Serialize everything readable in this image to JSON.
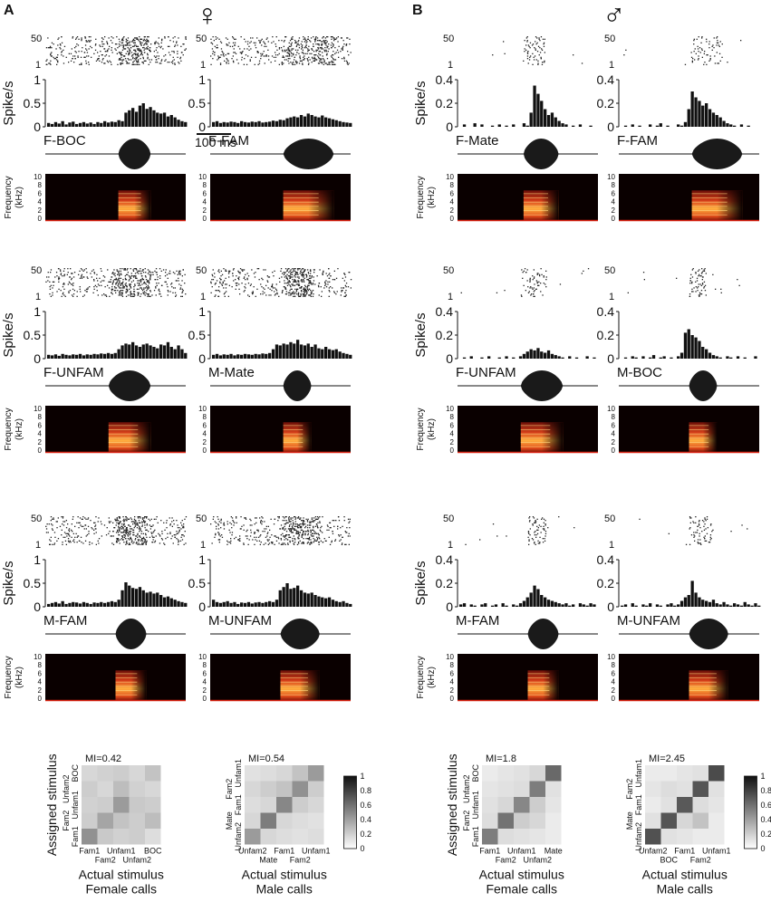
{
  "panels": [
    {
      "letter": "A",
      "sex_symbol": "♀",
      "rows": [
        {
          "cells": [
            {
              "stim": "F-BOC",
              "ymax": 1,
              "yticks": [
                "1",
                "0.5",
                "0"
              ],
              "raster_top": "50",
              "raster_bottom": "1",
              "scale_bar": "100 ms",
              "psth": [
                0.08,
                0.06,
                0.1,
                0.07,
                0.12,
                0.05,
                0.09,
                0.11,
                0.06,
                0.08,
                0.1,
                0.07,
                0.09,
                0.06,
                0.1,
                0.08,
                0.12,
                0.09,
                0.11,
                0.1,
                0.14,
                0.12,
                0.3,
                0.35,
                0.4,
                0.32,
                0.45,
                0.5,
                0.38,
                0.42,
                0.35,
                0.3,
                0.28,
                0.3,
                0.22,
                0.25,
                0.2,
                0.15,
                0.12,
                0.1
              ]
            },
            {
              "stim": "F-FAM",
              "ymax": 1,
              "yticks": [
                "1",
                "0.5",
                "0"
              ],
              "raster_top": "50",
              "raster_bottom": "1",
              "psth": [
                0.1,
                0.12,
                0.08,
                0.1,
                0.09,
                0.11,
                0.1,
                0.08,
                0.12,
                0.1,
                0.09,
                0.11,
                0.1,
                0.12,
                0.09,
                0.1,
                0.11,
                0.13,
                0.12,
                0.15,
                0.14,
                0.18,
                0.2,
                0.22,
                0.2,
                0.25,
                0.22,
                0.28,
                0.25,
                0.22,
                0.2,
                0.24,
                0.2,
                0.18,
                0.16,
                0.14,
                0.12,
                0.1,
                0.09,
                0.08
              ]
            }
          ]
        },
        {
          "cells": [
            {
              "stim": "F-UNFAM",
              "ymax": 1,
              "yticks": [
                "1",
                "0.5",
                "0"
              ],
              "raster_top": "50",
              "raster_bottom": "1",
              "psth": [
                0.08,
                0.07,
                0.09,
                0.06,
                0.1,
                0.08,
                0.07,
                0.09,
                0.08,
                0.1,
                0.07,
                0.09,
                0.08,
                0.1,
                0.09,
                0.11,
                0.1,
                0.12,
                0.1,
                0.12,
                0.2,
                0.28,
                0.32,
                0.3,
                0.35,
                0.28,
                0.25,
                0.3,
                0.32,
                0.28,
                0.25,
                0.22,
                0.3,
                0.28,
                0.35,
                0.25,
                0.2,
                0.28,
                0.2,
                0.12
              ]
            },
            {
              "stim": "M-Mate",
              "ymax": 1,
              "yticks": [
                "1",
                "0.5",
                "0"
              ],
              "raster_top": "50",
              "raster_bottom": "1",
              "psth": [
                0.08,
                0.1,
                0.07,
                0.09,
                0.08,
                0.1,
                0.07,
                0.09,
                0.08,
                0.1,
                0.09,
                0.08,
                0.1,
                0.09,
                0.11,
                0.1,
                0.12,
                0.2,
                0.3,
                0.28,
                0.32,
                0.3,
                0.35,
                0.32,
                0.4,
                0.3,
                0.28,
                0.32,
                0.25,
                0.3,
                0.22,
                0.2,
                0.25,
                0.2,
                0.18,
                0.2,
                0.15,
                0.12,
                0.1,
                0.08
              ]
            }
          ]
        },
        {
          "cells": [
            {
              "stim": "M-FAM",
              "ymax": 1,
              "yticks": [
                "1",
                "0.5",
                "0"
              ],
              "raster_top": "50",
              "raster_bottom": "1",
              "psth": [
                0.06,
                0.08,
                0.1,
                0.07,
                0.12,
                0.06,
                0.08,
                0.1,
                0.09,
                0.07,
                0.1,
                0.08,
                0.06,
                0.09,
                0.08,
                0.1,
                0.08,
                0.1,
                0.12,
                0.1,
                0.15,
                0.35,
                0.52,
                0.45,
                0.4,
                0.38,
                0.42,
                0.35,
                0.3,
                0.32,
                0.28,
                0.3,
                0.25,
                0.2,
                0.22,
                0.18,
                0.15,
                0.12,
                0.1,
                0.08
              ]
            },
            {
              "stim": "M-UNFAM",
              "ymax": 1,
              "yticks": [
                "1",
                "0.5",
                "0"
              ],
              "raster_top": "50",
              "raster_bottom": "1",
              "psth": [
                0.15,
                0.1,
                0.08,
                0.1,
                0.12,
                0.08,
                0.1,
                0.06,
                0.09,
                0.08,
                0.1,
                0.07,
                0.09,
                0.1,
                0.08,
                0.1,
                0.12,
                0.1,
                0.15,
                0.35,
                0.42,
                0.5,
                0.38,
                0.4,
                0.45,
                0.35,
                0.3,
                0.28,
                0.3,
                0.25,
                0.22,
                0.2,
                0.18,
                0.2,
                0.15,
                0.12,
                0.1,
                0.12,
                0.08,
                0.06
              ]
            }
          ]
        }
      ],
      "matrices": [
        {
          "mi": "MI=0.42",
          "rows": [
            "BOC",
            "Unfam2",
            "Unfam1",
            "Fam2",
            "Fam1"
          ],
          "cols": [
            "Fam1",
            "Fam2",
            "Unfam1",
            "Unfam2",
            "BOC"
          ],
          "values": [
            [
              0.15,
              0.18,
              0.2,
              0.15,
              0.25
            ],
            [
              0.2,
              0.15,
              0.28,
              0.18,
              0.15
            ],
            [
              0.18,
              0.2,
              0.45,
              0.22,
              0.2
            ],
            [
              0.2,
              0.4,
              0.25,
              0.2,
              0.28
            ],
            [
              0.5,
              0.22,
              0.18,
              0.2,
              0.12
            ]
          ],
          "xlabel": "Actual stimulus",
          "subtitle": "Female calls",
          "ylabel": "Assigned stimulus"
        },
        {
          "mi": "MI=0.54",
          "rows": [
            "Unfam1",
            "Fam2",
            "Fam1",
            "Mate",
            "Unfam2"
          ],
          "cols": [
            "Unfam2",
            "Mate",
            "Fam1",
            "Fam2",
            "Unfam1"
          ],
          "values": [
            [
              0.1,
              0.12,
              0.15,
              0.25,
              0.45
            ],
            [
              0.15,
              0.2,
              0.25,
              0.5,
              0.2
            ],
            [
              0.12,
              0.15,
              0.55,
              0.2,
              0.15
            ],
            [
              0.15,
              0.6,
              0.15,
              0.12,
              0.1
            ],
            [
              0.45,
              0.15,
              0.12,
              0.1,
              0.12
            ]
          ],
          "xlabel": "Actual stimulus",
          "subtitle": "Male calls",
          "colorbar": [
            "1",
            "0.8",
            "0.6",
            "0.4",
            "0.2",
            "0"
          ]
        }
      ]
    },
    {
      "letter": "B",
      "sex_symbol": "♂",
      "rows": [
        {
          "cells": [
            {
              "stim": "F-Mate",
              "ymax": 0.4,
              "yticks": [
                "0.4",
                "0.2",
                "0"
              ],
              "raster_top": "50",
              "raster_bottom": "1",
              "psth": [
                0,
                0.02,
                0,
                0,
                0.03,
                0,
                0.02,
                0,
                0,
                0.01,
                0,
                0.02,
                0,
                0.01,
                0,
                0.02,
                0,
                0,
                0.03,
                0.01,
                0.12,
                0.35,
                0.28,
                0.22,
                0.15,
                0.1,
                0.12,
                0.08,
                0.05,
                0.03,
                0.02,
                0,
                0.01,
                0,
                0.02,
                0,
                0,
                0.01,
                0,
                0
              ]
            },
            {
              "stim": "F-FAM",
              "ymax": 0.4,
              "yticks": [
                "0.4",
                "0.2",
                "0"
              ],
              "raster_top": "50",
              "raster_bottom": "1",
              "psth": [
                0,
                0.01,
                0,
                0.02,
                0,
                0.01,
                0,
                0,
                0.02,
                0,
                0.01,
                0.03,
                0,
                0.01,
                0,
                0,
                0.02,
                0.01,
                0.04,
                0.15,
                0.3,
                0.25,
                0.22,
                0.18,
                0.2,
                0.15,
                0.12,
                0.1,
                0.08,
                0.05,
                0.03,
                0.02,
                0.01,
                0,
                0.02,
                0,
                0.01,
                0,
                0,
                0
              ]
            }
          ]
        },
        {
          "cells": [
            {
              "stim": "F-UNFAM",
              "ymax": 0.4,
              "yticks": [
                "0.4",
                "0.2",
                "0"
              ],
              "raster_top": "50",
              "raster_bottom": "1",
              "psth": [
                0,
                0.01,
                0,
                0.02,
                0,
                0,
                0.01,
                0,
                0.02,
                0,
                0,
                0.01,
                0,
                0.02,
                0,
                0.01,
                0,
                0.02,
                0.04,
                0.06,
                0.08,
                0.07,
                0.09,
                0.06,
                0.05,
                0.07,
                0.04,
                0.03,
                0.02,
                0.01,
                0,
                0.02,
                0,
                0.01,
                0,
                0,
                0.02,
                0,
                0.01,
                0
              ]
            },
            {
              "stim": "M-BOC",
              "ymax": 0.4,
              "yticks": [
                "0.4",
                "0.2",
                "0"
              ],
              "raster_top": "50",
              "raster_bottom": "1",
              "psth": [
                0,
                0.01,
                0,
                0.02,
                0.01,
                0,
                0.02,
                0,
                0.01,
                0.03,
                0,
                0.01,
                0.02,
                0,
                0.01,
                0,
                0.02,
                0.05,
                0.22,
                0.25,
                0.2,
                0.18,
                0.15,
                0.1,
                0.08,
                0.05,
                0.03,
                0.02,
                0.01,
                0,
                0.02,
                0.01,
                0,
                0.02,
                0,
                0.01,
                0,
                0,
                0.02,
                0
              ]
            }
          ]
        },
        {
          "cells": [
            {
              "stim": "M-FAM",
              "ymax": 0.4,
              "yticks": [
                "0.4",
                "0.2",
                "0"
              ],
              "raster_top": "50",
              "raster_bottom": "1",
              "psth": [
                0.02,
                0.03,
                0,
                0.02,
                0.01,
                0,
                0.02,
                0.03,
                0,
                0.01,
                0.02,
                0,
                0.03,
                0.01,
                0,
                0.02,
                0.01,
                0.03,
                0.05,
                0.08,
                0.12,
                0.18,
                0.15,
                0.1,
                0.08,
                0.06,
                0.05,
                0.04,
                0.03,
                0.02,
                0.03,
                0.01,
                0.02,
                0,
                0.03,
                0.02,
                0.01,
                0.03,
                0.02,
                0
              ]
            },
            {
              "stim": "M-UNFAM",
              "ymax": 0.4,
              "yticks": [
                "0.4",
                "0.2",
                "0"
              ],
              "raster_top": "50",
              "raster_bottom": "1",
              "psth": [
                0.01,
                0.02,
                0,
                0.03,
                0.01,
                0,
                0.02,
                0.01,
                0.03,
                0,
                0.02,
                0.01,
                0,
                0.02,
                0.03,
                0.01,
                0.02,
                0.05,
                0.08,
                0.1,
                0.22,
                0.12,
                0.08,
                0.06,
                0.05,
                0.04,
                0.06,
                0.03,
                0.02,
                0.04,
                0.02,
                0.01,
                0.03,
                0.02,
                0.01,
                0.04,
                0.02,
                0.01,
                0.03,
                0.01
              ]
            }
          ]
        }
      ],
      "matrices": [
        {
          "mi": "MI=1.8",
          "rows": [
            "BOC",
            "Unfam2",
            "Unfam1",
            "Fam2",
            "Fam1"
          ],
          "cols": [
            "Fam1",
            "Fam2",
            "Unfam1",
            "Unfam2",
            "Mate"
          ],
          "values": [
            [
              0.05,
              0.08,
              0.1,
              0.15,
              0.7
            ],
            [
              0.08,
              0.1,
              0.12,
              0.6,
              0.1
            ],
            [
              0.1,
              0.15,
              0.55,
              0.2,
              0.08
            ],
            [
              0.12,
              0.65,
              0.2,
              0.15,
              0.05
            ],
            [
              0.6,
              0.12,
              0.1,
              0.08,
              0.05
            ]
          ],
          "xlabel": "Actual stimulus",
          "subtitle": "Female calls",
          "ylabel": "Assigned stimulus"
        },
        {
          "mi": "MI=2.45",
          "rows": [
            "Unfam1",
            "Fam2",
            "Fam1",
            "Mate",
            "Unfam2"
          ],
          "cols": [
            "Unfam2",
            "BOC",
            "Fam1",
            "Fam2",
            "Unfam1"
          ],
          "values": [
            [
              0.05,
              0.05,
              0.08,
              0.1,
              0.85
            ],
            [
              0.08,
              0.12,
              0.1,
              0.8,
              0.1
            ],
            [
              0.05,
              0.1,
              0.78,
              0.12,
              0.08
            ],
            [
              0.1,
              0.8,
              0.15,
              0.25,
              0.05
            ],
            [
              0.82,
              0.1,
              0.08,
              0.05,
              0.05
            ]
          ],
          "xlabel": "Actual stimulus",
          "subtitle": "Male calls",
          "colorbar": [
            "1",
            "0.8",
            "0.6",
            "0.4",
            "0.2",
            "0"
          ]
        }
      ]
    }
  ],
  "labels": {
    "spike_axis": "Spike/s",
    "freq_axis": "Frequency",
    "freq_unit": "(kHz)",
    "freq_ticks": [
      "10",
      "8",
      "6",
      "4",
      "2",
      "0"
    ]
  },
  "colors": {
    "ink": "#111111",
    "spectrogram_bg": "#0a0000",
    "spectrogram_hot": "#ffcc55",
    "spectrogram_mid": "#d8401a"
  }
}
